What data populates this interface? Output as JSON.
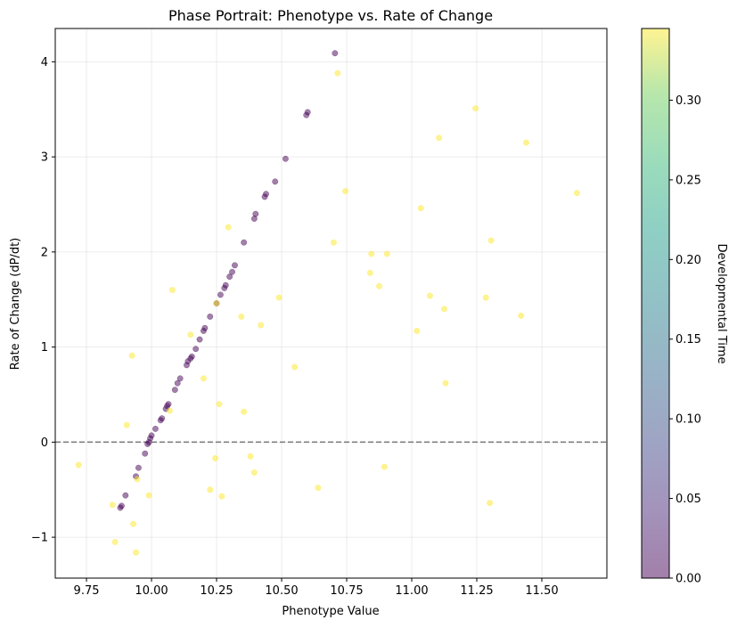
{
  "chart_data": {
    "type": "scatter",
    "title": "Phase Portrait: Phenotype vs. Rate of Change",
    "xlabel": "Phenotype Value",
    "ylabel": "Rate of Change (dP/dt)",
    "xlim": [
      9.63,
      11.75
    ],
    "ylim": [
      -1.43,
      4.35
    ],
    "xticks": [
      9.75,
      10.0,
      10.25,
      10.5,
      10.75,
      11.0,
      11.25,
      11.5
    ],
    "xtick_labels": [
      "9.75",
      "10.00",
      "10.25",
      "10.50",
      "10.75",
      "11.00",
      "11.25",
      "11.50"
    ],
    "yticks": [
      -1,
      0,
      1,
      2,
      3,
      4
    ],
    "ytick_labels": [
      "−1",
      "0",
      "1",
      "2",
      "3",
      "4"
    ],
    "grid": true,
    "reference_line": {
      "y": 0,
      "style": "dashed",
      "color": "#808080"
    },
    "colorbar": {
      "label": "Developmental Time",
      "colormap": "viridis",
      "range": [
        0.0,
        0.345
      ],
      "ticks": [
        0.0,
        0.05,
        0.1,
        0.15,
        0.2,
        0.25,
        0.3
      ],
      "tick_labels": [
        "0.00",
        "0.05",
        "0.10",
        "0.15",
        "0.20",
        "0.25",
        "0.30"
      ]
    },
    "series": [
      {
        "color_value": 0.0,
        "color": "#440154",
        "points": [
          [
            9.88,
            -0.69
          ],
          [
            9.885,
            -0.67
          ],
          [
            9.9,
            -0.56
          ],
          [
            9.94,
            -0.36
          ],
          [
            9.95,
            -0.27
          ],
          [
            9.975,
            -0.12
          ],
          [
            9.985,
            -0.02
          ],
          [
            9.99,
            0.0
          ],
          [
            9.995,
            0.04
          ],
          [
            10.0,
            0.07
          ],
          [
            10.015,
            0.14
          ],
          [
            10.035,
            0.23
          ],
          [
            10.04,
            0.25
          ],
          [
            10.055,
            0.35
          ],
          [
            10.06,
            0.38
          ],
          [
            10.065,
            0.4
          ],
          [
            10.09,
            0.55
          ],
          [
            10.1,
            0.62
          ],
          [
            10.11,
            0.67
          ],
          [
            10.135,
            0.81
          ],
          [
            10.14,
            0.85
          ],
          [
            10.15,
            0.88
          ],
          [
            10.155,
            0.9
          ],
          [
            10.17,
            0.98
          ],
          [
            10.185,
            1.08
          ],
          [
            10.2,
            1.17
          ],
          [
            10.205,
            1.2
          ],
          [
            10.225,
            1.32
          ],
          [
            10.25,
            1.46
          ],
          [
            10.265,
            1.55
          ],
          [
            10.28,
            1.62
          ],
          [
            10.285,
            1.65
          ],
          [
            10.3,
            1.74
          ],
          [
            10.31,
            1.79
          ],
          [
            10.32,
            1.86
          ],
          [
            10.355,
            2.1
          ],
          [
            10.395,
            2.35
          ],
          [
            10.4,
            2.4
          ],
          [
            10.435,
            2.58
          ],
          [
            10.44,
            2.61
          ],
          [
            10.475,
            2.74
          ],
          [
            10.515,
            2.98
          ],
          [
            10.595,
            3.44
          ],
          [
            10.6,
            3.47
          ],
          [
            10.705,
            4.09
          ]
        ]
      },
      {
        "color_value": 0.345,
        "color": "#fde725",
        "points": [
          [
            9.72,
            -0.24
          ],
          [
            9.85,
            -0.66
          ],
          [
            9.86,
            -1.05
          ],
          [
            9.905,
            0.18
          ],
          [
            9.925,
            0.91
          ],
          [
            9.93,
            -0.86
          ],
          [
            9.94,
            -1.16
          ],
          [
            9.945,
            -0.39
          ],
          [
            9.99,
            -0.56
          ],
          [
            10.07,
            0.33
          ],
          [
            10.08,
            1.6
          ],
          [
            10.15,
            1.13
          ],
          [
            10.2,
            0.67
          ],
          [
            10.225,
            -0.5
          ],
          [
            10.245,
            -0.17
          ],
          [
            10.25,
            1.46
          ],
          [
            10.26,
            0.4
          ],
          [
            10.27,
            -0.57
          ],
          [
            10.295,
            2.26
          ],
          [
            10.345,
            1.32
          ],
          [
            10.355,
            0.32
          ],
          [
            10.38,
            -0.15
          ],
          [
            10.395,
            -0.32
          ],
          [
            10.42,
            1.23
          ],
          [
            10.49,
            1.52
          ],
          [
            10.55,
            0.79
          ],
          [
            10.64,
            -0.48
          ],
          [
            10.7,
            2.1
          ],
          [
            10.715,
            3.88
          ],
          [
            10.745,
            2.64
          ],
          [
            10.84,
            1.78
          ],
          [
            10.845,
            1.98
          ],
          [
            10.875,
            1.64
          ],
          [
            10.895,
            -0.26
          ],
          [
            10.905,
            1.98
          ],
          [
            11.02,
            1.17
          ],
          [
            11.035,
            2.46
          ],
          [
            11.07,
            1.54
          ],
          [
            11.105,
            3.2
          ],
          [
            11.125,
            1.4
          ],
          [
            11.13,
            0.62
          ],
          [
            11.245,
            3.51
          ],
          [
            11.285,
            1.52
          ],
          [
            11.3,
            -0.64
          ],
          [
            11.305,
            2.12
          ],
          [
            11.42,
            1.33
          ],
          [
            11.44,
            3.15
          ],
          [
            11.635,
            2.62
          ]
        ]
      }
    ]
  }
}
